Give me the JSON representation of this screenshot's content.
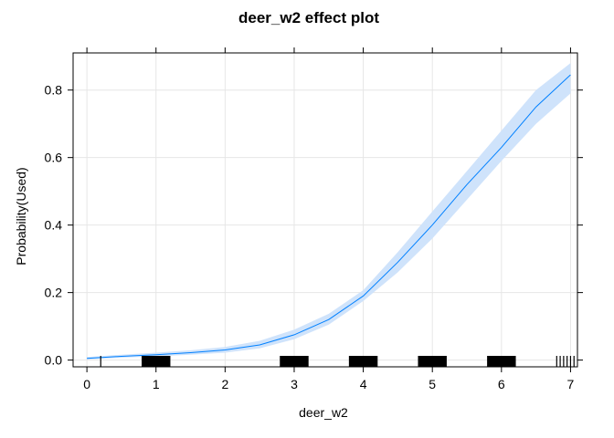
{
  "chart_data": {
    "type": "line",
    "title": "deer_w2 effect plot",
    "xlabel": "deer_w2",
    "ylabel": "Probability(Used)",
    "xlim": [
      -0.2,
      7.1
    ],
    "ylim": [
      -0.02,
      0.91
    ],
    "xticks": [
      0,
      1,
      2,
      3,
      4,
      5,
      6,
      7
    ],
    "yticks": [
      0.0,
      0.2,
      0.4,
      0.6,
      0.8
    ],
    "xtick_labels": [
      "0",
      "1",
      "2",
      "3",
      "4",
      "5",
      "6",
      "7"
    ],
    "ytick_labels": [
      "0.0",
      "0.2",
      "0.4",
      "0.6",
      "0.8"
    ],
    "grid": true,
    "colors": {
      "line": "#0080ff",
      "band": "#cfe3fb",
      "rug": "#000000",
      "grid": "#e6e6e6",
      "axis": "#000000"
    },
    "series": [
      {
        "x": [
          0,
          0.5,
          1,
          1.5,
          2,
          2.5,
          3,
          3.5,
          4,
          4.5,
          5,
          5.5,
          6,
          6.5,
          7
        ],
        "fit": [
          0.005,
          0.011,
          0.016,
          0.022,
          0.03,
          0.045,
          0.075,
          0.12,
          0.19,
          0.29,
          0.4,
          0.52,
          0.63,
          0.75,
          0.845
        ],
        "lower": [
          0.002,
          0.007,
          0.011,
          0.016,
          0.022,
          0.035,
          0.062,
          0.105,
          0.175,
          0.26,
          0.36,
          0.475,
          0.59,
          0.7,
          0.79
        ],
        "upper": [
          0.009,
          0.016,
          0.022,
          0.029,
          0.039,
          0.057,
          0.09,
          0.137,
          0.207,
          0.32,
          0.44,
          0.56,
          0.68,
          0.8,
          0.88
        ]
      }
    ],
    "rug": [
      0.2,
      0.8,
      0.9,
      1.0,
      1.1,
      1.2,
      2.8,
      2.9,
      3.0,
      3.1,
      3.2,
      3.8,
      3.9,
      4.0,
      4.1,
      4.2,
      4.8,
      4.9,
      5.0,
      5.1,
      5.2,
      5.8,
      5.9,
      6.0,
      6.1,
      6.2,
      6.8,
      6.85,
      6.9,
      6.95,
      7.0,
      7.05
    ]
  }
}
